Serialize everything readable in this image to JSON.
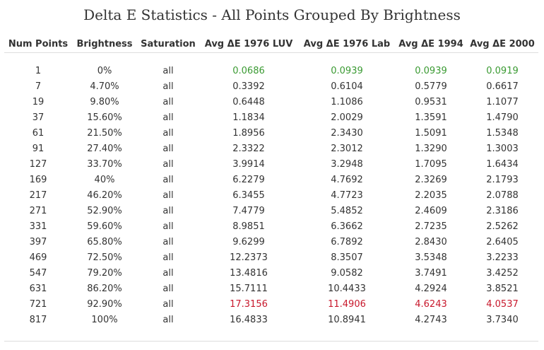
{
  "title": "Delta E Statistics - All Points Grouped By Brightness",
  "colors": {
    "best": "#3a9a32",
    "worst": "#c8182c",
    "text": "#333333"
  },
  "columns": [
    "Num Points",
    "Brightness",
    "Saturation",
    "Avg ΔE 1976 LUV",
    "Avg ΔE 1976 Lab",
    "Avg ΔE 1994",
    "Avg ΔE 2000"
  ],
  "rows": [
    {
      "num": "1",
      "brightness": "0%",
      "saturation": "all",
      "luv": "0.0686",
      "lab": "0.0939",
      "e94": "0.0939",
      "e2000": "0.0919",
      "highlight": "best"
    },
    {
      "num": "7",
      "brightness": "4.70%",
      "saturation": "all",
      "luv": "0.3392",
      "lab": "0.6104",
      "e94": "0.5779",
      "e2000": "0.6617"
    },
    {
      "num": "19",
      "brightness": "9.80%",
      "saturation": "all",
      "luv": "0.6448",
      "lab": "1.1086",
      "e94": "0.9531",
      "e2000": "1.1077"
    },
    {
      "num": "37",
      "brightness": "15.60%",
      "saturation": "all",
      "luv": "1.1834",
      "lab": "2.0029",
      "e94": "1.3591",
      "e2000": "1.4790"
    },
    {
      "num": "61",
      "brightness": "21.50%",
      "saturation": "all",
      "luv": "1.8956",
      "lab": "2.3430",
      "e94": "1.5091",
      "e2000": "1.5348"
    },
    {
      "num": "91",
      "brightness": "27.40%",
      "saturation": "all",
      "luv": "2.3322",
      "lab": "2.3012",
      "e94": "1.3290",
      "e2000": "1.3003"
    },
    {
      "num": "127",
      "brightness": "33.70%",
      "saturation": "all",
      "luv": "3.9914",
      "lab": "3.2948",
      "e94": "1.7095",
      "e2000": "1.6434"
    },
    {
      "num": "169",
      "brightness": "40%",
      "saturation": "all",
      "luv": "6.2279",
      "lab": "4.7692",
      "e94": "2.3269",
      "e2000": "2.1793"
    },
    {
      "num": "217",
      "brightness": "46.20%",
      "saturation": "all",
      "luv": "6.3455",
      "lab": "4.7723",
      "e94": "2.2035",
      "e2000": "2.0788"
    },
    {
      "num": "271",
      "brightness": "52.90%",
      "saturation": "all",
      "luv": "7.4779",
      "lab": "5.4852",
      "e94": "2.4609",
      "e2000": "2.3186"
    },
    {
      "num": "331",
      "brightness": "59.60%",
      "saturation": "all",
      "luv": "8.9851",
      "lab": "6.3662",
      "e94": "2.7235",
      "e2000": "2.5262"
    },
    {
      "num": "397",
      "brightness": "65.80%",
      "saturation": "all",
      "luv": "9.6299",
      "lab": "6.7892",
      "e94": "2.8430",
      "e2000": "2.6405"
    },
    {
      "num": "469",
      "brightness": "72.50%",
      "saturation": "all",
      "luv": "12.2373",
      "lab": "8.3507",
      "e94": "3.5348",
      "e2000": "3.2233"
    },
    {
      "num": "547",
      "brightness": "79.20%",
      "saturation": "all",
      "luv": "13.4816",
      "lab": "9.0582",
      "e94": "3.7491",
      "e2000": "3.4252"
    },
    {
      "num": "631",
      "brightness": "86.20%",
      "saturation": "all",
      "luv": "15.7111",
      "lab": "10.4433",
      "e94": "4.2924",
      "e2000": "3.8521"
    },
    {
      "num": "721",
      "brightness": "92.90%",
      "saturation": "all",
      "luv": "17.3156",
      "lab": "11.4906",
      "e94": "4.6243",
      "e2000": "4.0537",
      "highlight": "worst"
    },
    {
      "num": "817",
      "brightness": "100%",
      "saturation": "all",
      "luv": "16.4833",
      "lab": "10.8941",
      "e94": "4.2743",
      "e2000": "3.7340"
    }
  ]
}
